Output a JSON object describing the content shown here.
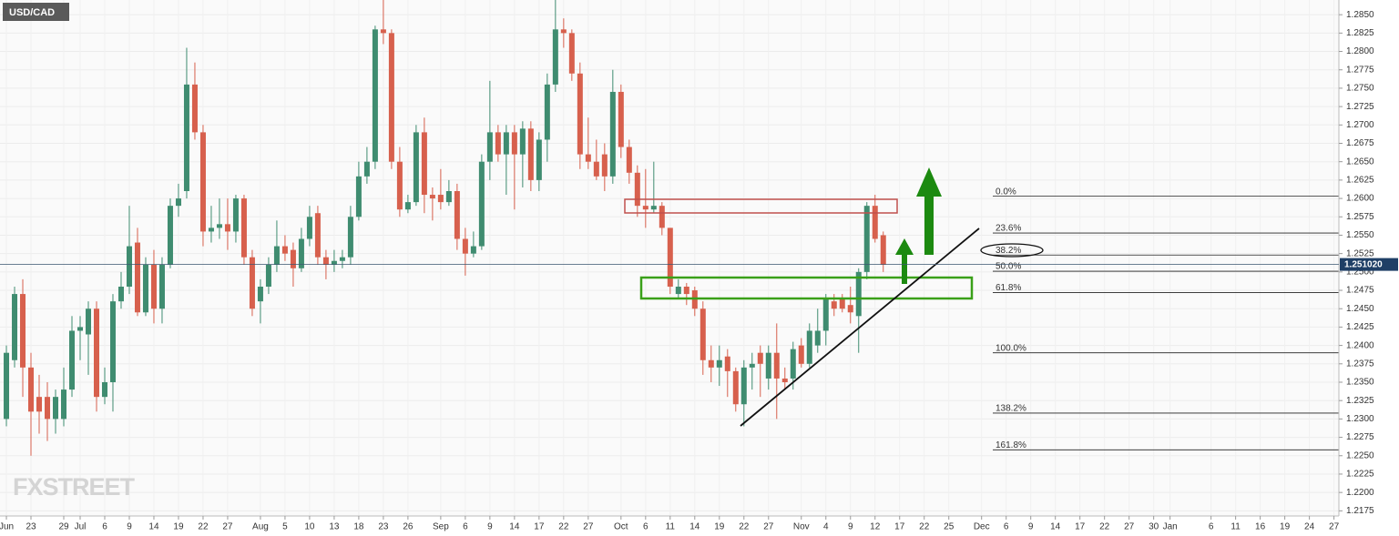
{
  "chart_data": {
    "type": "candlestick",
    "title": "USD/CAD",
    "watermark": "FXSTREET",
    "up_color": "#3f8c70",
    "down_color": "#d7604d",
    "grid": true,
    "open": [
      1.23,
      1.238,
      1.247,
      1.237,
      1.233,
      1.233,
      1.23,
      1.23,
      1.234,
      1.242,
      1.2415,
      1.245,
      1.233,
      1.235,
      1.246,
      1.248,
      1.254,
      1.2445,
      1.251,
      1.245,
      1.251,
      1.259,
      1.261,
      1.2755,
      1.269,
      1.2555,
      1.256,
      1.2565,
      1.2555,
      1.26,
      1.252,
      1.246,
      1.248,
      1.251,
      1.2535,
      1.253,
      1.2505,
      1.2545,
      1.258,
      1.252,
      1.251,
      1.2515,
      1.252,
      1.2575,
      1.263,
      1.265,
      1.283,
      1.2825,
      1.265,
      1.2585,
      1.2595,
      1.269,
      1.2605,
      1.2605,
      1.2595,
      1.261,
      1.2545,
      1.2525,
      1.2535,
      1.265,
      1.269,
      1.266,
      1.269,
      1.266,
      1.2695,
      1.2625,
      1.268,
      1.2755,
      1.283,
      1.2825,
      1.277,
      1.266,
      1.265,
      1.266,
      1.263,
      1.2745,
      1.267,
      1.2635,
      1.259,
      1.2585,
      1.259,
      1.256,
      1.247,
      1.248,
      1.2475,
      1.245,
      1.238,
      1.237,
      1.2385,
      1.2365,
      1.232,
      1.237,
      1.239,
      1.2355,
      1.239,
      1.2355,
      1.2355,
      1.24,
      1.2375,
      1.24,
      1.242,
      1.246,
      1.2465,
      1.2455,
      1.244,
      1.25,
      1.259,
      1.255
    ],
    "high": [
      1.24,
      1.248,
      1.249,
      1.239,
      1.236,
      1.235,
      1.234,
      1.237,
      1.244,
      1.244,
      1.246,
      1.246,
      1.237,
      1.247,
      1.25,
      1.259,
      1.256,
      1.252,
      1.253,
      1.252,
      1.26,
      1.262,
      1.2805,
      1.2785,
      1.27,
      1.259,
      1.26,
      1.26,
      1.2605,
      1.2605,
      1.253,
      1.249,
      1.252,
      1.257,
      1.255,
      1.254,
      1.256,
      1.259,
      1.259,
      1.253,
      1.253,
      1.253,
      1.259,
      1.265,
      1.267,
      1.2835,
      1.2875,
      1.283,
      1.267,
      1.2605,
      1.27,
      1.271,
      1.2615,
      1.264,
      1.2625,
      1.262,
      1.256,
      1.2555,
      1.266,
      1.276,
      1.27,
      1.27,
      1.27,
      1.2705,
      1.2705,
      1.269,
      1.277,
      1.287,
      1.2845,
      1.283,
      1.2785,
      1.271,
      1.268,
      1.2675,
      1.2775,
      1.2755,
      1.268,
      1.2645,
      1.264,
      1.265,
      1.2595,
      1.256,
      1.249,
      1.2485,
      1.248,
      1.246,
      1.24,
      1.24,
      1.2395,
      1.237,
      1.238,
      1.239,
      1.24,
      1.24,
      1.243,
      1.237,
      1.2405,
      1.241,
      1.243,
      1.245,
      1.247,
      1.247,
      1.247,
      1.248,
      1.2505,
      1.2595,
      1.2605,
      1.2555
    ],
    "low": [
      1.229,
      1.237,
      1.233,
      1.225,
      1.228,
      1.227,
      1.228,
      1.229,
      1.233,
      1.238,
      1.236,
      1.231,
      1.232,
      1.231,
      1.245,
      1.247,
      1.244,
      1.244,
      1.243,
      1.243,
      1.2505,
      1.2575,
      1.26,
      1.268,
      1.2535,
      1.254,
      1.2545,
      1.253,
      1.254,
      1.251,
      1.244,
      1.243,
      1.247,
      1.25,
      1.2515,
      1.248,
      1.25,
      1.2535,
      1.251,
      1.249,
      1.25,
      1.2505,
      1.251,
      1.257,
      1.262,
      1.264,
      1.281,
      1.264,
      1.2575,
      1.258,
      1.259,
      1.258,
      1.257,
      1.2585,
      1.259,
      1.253,
      1.2495,
      1.252,
      1.253,
      1.2625,
      1.265,
      1.2605,
      1.2585,
      1.2615,
      1.261,
      1.261,
      1.265,
      1.2745,
      1.2805,
      1.276,
      1.264,
      1.264,
      1.2625,
      1.261,
      1.262,
      1.2655,
      1.262,
      1.2575,
      1.256,
      1.258,
      1.255,
      1.247,
      1.2465,
      1.2455,
      1.244,
      1.236,
      1.235,
      1.2345,
      1.233,
      1.231,
      1.229,
      1.234,
      1.233,
      1.234,
      1.23,
      1.234,
      1.234,
      1.237,
      1.237,
      1.239,
      1.24,
      1.244,
      1.2445,
      1.243,
      1.239,
      1.249,
      1.254,
      1.25
    ],
    "close": [
      1.239,
      1.247,
      1.237,
      1.231,
      1.231,
      1.23,
      1.233,
      1.234,
      1.242,
      1.2425,
      1.245,
      1.233,
      1.235,
      1.246,
      1.248,
      1.2535,
      1.2445,
      1.251,
      1.245,
      1.251,
      1.259,
      1.26,
      1.2755,
      1.269,
      1.2555,
      1.256,
      1.2565,
      1.2555,
      1.26,
      1.252,
      1.245,
      1.248,
      1.251,
      1.2535,
      1.2525,
      1.2505,
      1.2545,
      1.2575,
      1.252,
      1.251,
      1.2515,
      1.252,
      1.2575,
      1.263,
      1.265,
      1.283,
      1.2825,
      1.265,
      1.2585,
      1.2595,
      1.269,
      1.2605,
      1.26,
      1.2595,
      1.261,
      1.2545,
      1.2525,
      1.2535,
      1.265,
      1.269,
      1.266,
      1.269,
      1.266,
      1.2695,
      1.2625,
      1.268,
      1.2755,
      1.283,
      1.2825,
      1.277,
      1.266,
      1.265,
      1.263,
      1.263,
      1.2745,
      1.267,
      1.2635,
      1.259,
      1.2585,
      1.259,
      1.256,
      1.248,
      1.248,
      1.247,
      1.245,
      1.238,
      1.237,
      1.238,
      1.2365,
      1.232,
      1.237,
      1.2375,
      1.2375,
      1.239,
      1.2355,
      1.235,
      1.2395,
      1.2375,
      1.242,
      1.242,
      1.2465,
      1.245,
      1.245,
      1.2445,
      1.25,
      1.259,
      1.2545,
      1.251
    ],
    "xlim": [
      -0.78,
      162.6
    ],
    "xticks": [
      {
        "value": 0,
        "label": "Jun"
      },
      {
        "value": 3,
        "label": "23"
      },
      {
        "value": 7,
        "label": "29"
      },
      {
        "value": 9,
        "label": "Jul"
      },
      {
        "value": 12,
        "label": "6"
      },
      {
        "value": 15,
        "label": "9"
      },
      {
        "value": 18,
        "label": "14"
      },
      {
        "value": 21,
        "label": "19"
      },
      {
        "value": 24,
        "label": "22"
      },
      {
        "value": 27,
        "label": "27"
      },
      {
        "value": 31,
        "label": "Aug"
      },
      {
        "value": 34,
        "label": "5"
      },
      {
        "value": 37,
        "label": "10"
      },
      {
        "value": 40,
        "label": "13"
      },
      {
        "value": 43,
        "label": "18"
      },
      {
        "value": 46,
        "label": "23"
      },
      {
        "value": 49,
        "label": "26"
      },
      {
        "value": 53,
        "label": "Sep"
      },
      {
        "value": 56,
        "label": "6"
      },
      {
        "value": 59,
        "label": "9"
      },
      {
        "value": 62,
        "label": "14"
      },
      {
        "value": 65,
        "label": "17"
      },
      {
        "value": 68,
        "label": "22"
      },
      {
        "value": 71,
        "label": "27"
      },
      {
        "value": 75,
        "label": "Oct"
      },
      {
        "value": 78,
        "label": "6"
      },
      {
        "value": 81,
        "label": "11"
      },
      {
        "value": 84,
        "label": "14"
      },
      {
        "value": 87,
        "label": "19"
      },
      {
        "value": 90,
        "label": "22"
      },
      {
        "value": 93,
        "label": "27"
      },
      {
        "value": 97,
        "label": "Nov"
      },
      {
        "value": 100,
        "label": "4"
      },
      {
        "value": 103,
        "label": "9"
      },
      {
        "value": 106,
        "label": "12"
      },
      {
        "value": 109,
        "label": "17"
      },
      {
        "value": 112,
        "label": "22"
      },
      {
        "value": 115,
        "label": "25"
      },
      {
        "value": 119,
        "label": "Dec"
      },
      {
        "value": 122,
        "label": "6"
      },
      {
        "value": 125,
        "label": "9"
      },
      {
        "value": 128,
        "label": "14"
      },
      {
        "value": 131,
        "label": "17"
      },
      {
        "value": 134,
        "label": "22"
      },
      {
        "value": 137,
        "label": "27"
      },
      {
        "value": 140,
        "label": "30"
      },
      {
        "value": 142,
        "label": "Jan"
      },
      {
        "value": 147,
        "label": "6"
      },
      {
        "value": 150,
        "label": "11"
      },
      {
        "value": 153,
        "label": "16"
      },
      {
        "value": 156,
        "label": "19"
      },
      {
        "value": 159,
        "label": "24"
      },
      {
        "value": 162,
        "label": "27"
      }
    ],
    "ylim": [
      1.2168,
      1.287
    ],
    "yticks": [
      {
        "value": 1.2175,
        "label": "1.2175"
      },
      {
        "value": 1.22,
        "label": "1.2200"
      },
      {
        "value": 1.2225,
        "label": "1.2225"
      },
      {
        "value": 1.225,
        "label": "1.2250"
      },
      {
        "value": 1.2275,
        "label": "1.2275"
      },
      {
        "value": 1.23,
        "label": "1.2300"
      },
      {
        "value": 1.2325,
        "label": "1.2325"
      },
      {
        "value": 1.235,
        "label": "1.2350"
      },
      {
        "value": 1.2375,
        "label": "1.2375"
      },
      {
        "value": 1.24,
        "label": "1.2400"
      },
      {
        "value": 1.2425,
        "label": "1.2425"
      },
      {
        "value": 1.245,
        "label": "1.2450"
      },
      {
        "value": 1.2475,
        "label": "1.2475"
      },
      {
        "value": 1.25,
        "label": "1.2500"
      },
      {
        "value": 1.2525,
        "label": "1.2525"
      },
      {
        "value": 1.255,
        "label": "1.2550"
      },
      {
        "value": 1.2575,
        "label": "1.2575"
      },
      {
        "value": 1.26,
        "label": "1.2600"
      },
      {
        "value": 1.2625,
        "label": "1.2625"
      },
      {
        "value": 1.265,
        "label": "1.2650"
      },
      {
        "value": 1.2675,
        "label": "1.2675"
      },
      {
        "value": 1.27,
        "label": "1.2700"
      },
      {
        "value": 1.2725,
        "label": "1.2725"
      },
      {
        "value": 1.275,
        "label": "1.2750"
      },
      {
        "value": 1.2775,
        "label": "1.2775"
      },
      {
        "value": 1.28,
        "label": "1.2800"
      },
      {
        "value": 1.2825,
        "label": "1.2825"
      },
      {
        "value": 1.285,
        "label": "1.2850"
      }
    ],
    "last_price": {
      "value": 1.25102,
      "label": "1.251020"
    },
    "fib_levels": [
      {
        "value": 1.2603,
        "label": "0.0%"
      },
      {
        "value": 1.2553,
        "label": "23.6%"
      },
      {
        "value": 1.2523,
        "label": "38.2%"
      },
      {
        "value": 1.2501,
        "label": "50.0%"
      },
      {
        "value": 1.2472,
        "label": "61.8%"
      },
      {
        "value": 1.239,
        "label": "100.0%"
      },
      {
        "value": 1.2308,
        "label": "138.2%"
      },
      {
        "value": 1.2258,
        "label": "161.8%"
      }
    ]
  }
}
